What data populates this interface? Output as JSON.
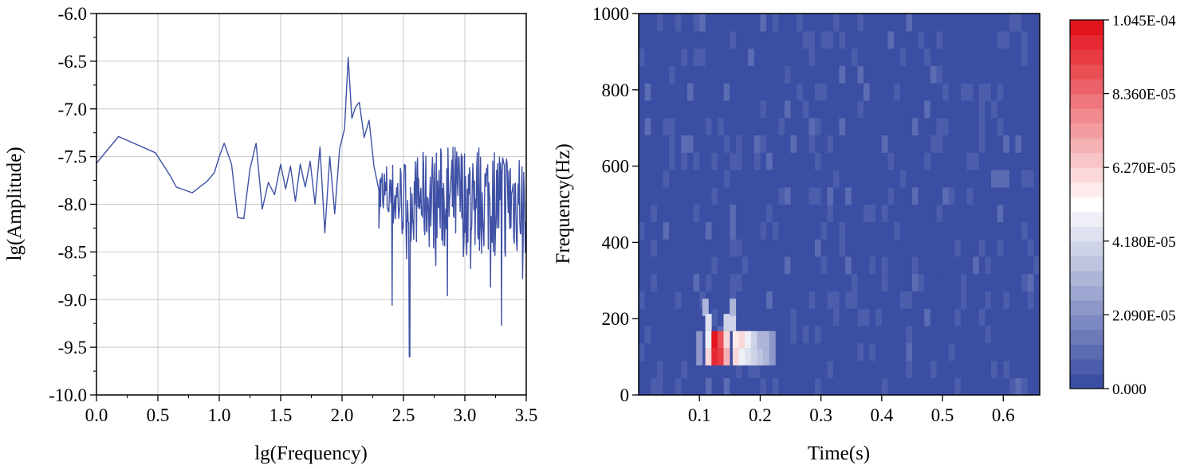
{
  "chart_data": [
    {
      "type": "line",
      "title": "",
      "xlabel": "lg(Frequency)",
      "ylabel": "lg(Amplitude)",
      "xlim": [
        0.0,
        3.5
      ],
      "ylim": [
        -10.0,
        -6.0
      ],
      "grid": true,
      "xticks": [
        "0.0",
        "0.5",
        "1.0",
        "1.5",
        "2.0",
        "2.5",
        "3.0",
        "3.5"
      ],
      "yticks": [
        "-10.0",
        "-9.5",
        "-9.0",
        "-8.5",
        "-8.0",
        "-7.5",
        "-7.0",
        "-6.5",
        "-6.0"
      ],
      "series": [
        {
          "color": "#3f51a5",
          "x": [
            0.0,
            0.18,
            0.48,
            0.6,
            0.65,
            0.78,
            0.9,
            0.96,
            1.0,
            1.04,
            1.1,
            1.15,
            1.2,
            1.25,
            1.3,
            1.35,
            1.4,
            1.45,
            1.5,
            1.54,
            1.58,
            1.62,
            1.66,
            1.7,
            1.74,
            1.78,
            1.82,
            1.86,
            1.9,
            1.94,
            1.98,
            2.02,
            2.05,
            2.08,
            2.11,
            2.14,
            2.18,
            2.22,
            2.26,
            2.3,
            2.34,
            2.38,
            2.41,
            2.45,
            2.5,
            2.55,
            2.6,
            2.65,
            2.7,
            2.8,
            2.9,
            3.0,
            3.1,
            3.2,
            3.3,
            3.4,
            3.45,
            3.5
          ],
          "y": [
            -7.57,
            -7.29,
            -7.46,
            -7.7,
            -7.82,
            -7.88,
            -7.76,
            -7.67,
            -7.5,
            -7.36,
            -7.58,
            -8.14,
            -8.15,
            -7.63,
            -7.36,
            -8.05,
            -7.77,
            -7.9,
            -7.58,
            -7.84,
            -7.6,
            -7.97,
            -7.58,
            -7.82,
            -7.55,
            -8.0,
            -7.4,
            -8.3,
            -7.5,
            -8.1,
            -7.42,
            -7.21,
            -6.46,
            -7.1,
            -6.98,
            -6.93,
            -7.3,
            -7.12,
            -7.6,
            -7.85,
            -7.55,
            -8.1,
            -9.06,
            -7.7,
            -8.2,
            -9.6,
            -7.8,
            -8.5,
            -7.9,
            -8.2,
            -8.6,
            -7.8,
            -8.9,
            -8.0,
            -9.27,
            -8.2,
            -8.7,
            -7.9
          ]
        }
      ]
    },
    {
      "type": "heatmap",
      "title": "",
      "xlabel": "Time(s)",
      "ylabel": "Frequency(Hz)",
      "xlim": [
        0.0,
        0.66
      ],
      "ylim": [
        0,
        1000
      ],
      "xticks": [
        "0.1",
        "0.2",
        "0.3",
        "0.4",
        "0.5",
        "0.6"
      ],
      "yticks": [
        "0",
        "200",
        "400",
        "600",
        "800",
        "1000"
      ],
      "colorbar": {
        "min": 0,
        "max": 0.0001045,
        "ticks": [
          "0.000",
          "2.090E-05",
          "4.180E-05",
          "6.270E-05",
          "8.360E-05",
          "1.045E-04"
        ],
        "colors": [
          "#3b4ea3",
          "#ffffff",
          "#e3141e"
        ]
      },
      "hotspots": [
        {
          "t": 0.11,
          "f": 230,
          "value": 3e-05
        },
        {
          "t": 0.115,
          "f": 190,
          "value": 4.5e-05
        },
        {
          "t": 0.115,
          "f": 145,
          "value": 5e-05
        },
        {
          "t": 0.115,
          "f": 100,
          "value": 6e-05
        },
        {
          "t": 0.125,
          "f": 145,
          "value": 0.0001045
        },
        {
          "t": 0.125,
          "f": 100,
          "value": 0.0001
        },
        {
          "t": 0.135,
          "f": 145,
          "value": 9e-05
        },
        {
          "t": 0.135,
          "f": 100,
          "value": 9.5e-05
        },
        {
          "t": 0.145,
          "f": 145,
          "value": 6e-05
        },
        {
          "t": 0.145,
          "f": 100,
          "value": 7e-05
        },
        {
          "t": 0.145,
          "f": 190,
          "value": 4e-05
        },
        {
          "t": 0.155,
          "f": 190,
          "value": 4e-05
        },
        {
          "t": 0.155,
          "f": 230,
          "value": 3e-05
        },
        {
          "t": 0.16,
          "f": 145,
          "value": 5.5e-05
        },
        {
          "t": 0.16,
          "f": 100,
          "value": 6e-05
        },
        {
          "t": 0.17,
          "f": 145,
          "value": 6e-05
        },
        {
          "t": 0.17,
          "f": 100,
          "value": 5e-05
        },
        {
          "t": 0.18,
          "f": 145,
          "value": 5e-05
        },
        {
          "t": 0.18,
          "f": 100,
          "value": 4.5e-05
        },
        {
          "t": 0.19,
          "f": 145,
          "value": 4e-05
        },
        {
          "t": 0.19,
          "f": 100,
          "value": 4e-05
        },
        {
          "t": 0.2,
          "f": 145,
          "value": 3e-05
        },
        {
          "t": 0.2,
          "f": 100,
          "value": 3.5e-05
        },
        {
          "t": 0.21,
          "f": 145,
          "value": 3e-05
        },
        {
          "t": 0.21,
          "f": 100,
          "value": 3e-05
        },
        {
          "t": 0.22,
          "f": 145,
          "value": 2e-05
        },
        {
          "t": 0.22,
          "f": 100,
          "value": 2e-05
        },
        {
          "t": 0.1,
          "f": 145,
          "value": 2e-05
        },
        {
          "t": 0.1,
          "f": 100,
          "value": 2e-05
        }
      ]
    }
  ]
}
